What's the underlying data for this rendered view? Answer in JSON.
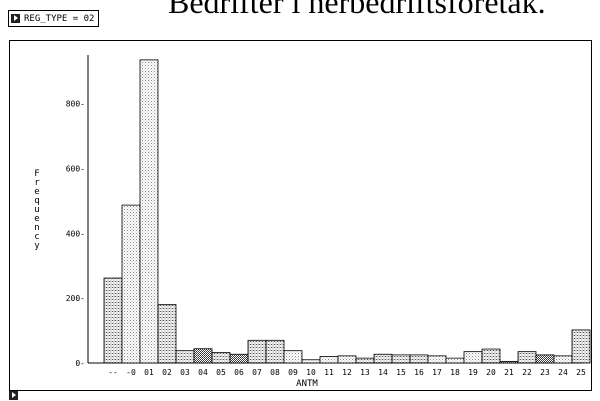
{
  "header": {
    "title": "Bedrifter i herbedriftsforetak.",
    "filter_label": "REG_TYPE = 02"
  },
  "chart_data": {
    "type": "bar",
    "categories": [
      "--",
      "-0",
      "01",
      "02",
      "03",
      "04",
      "05",
      "06",
      "07",
      "08",
      "09",
      "10",
      "11",
      "12",
      "13",
      "14",
      "15",
      "16",
      "17",
      "18",
      "19",
      "20",
      "21",
      "22",
      "23",
      "24",
      "25"
    ],
    "values": [
      262,
      487,
      935,
      180,
      38,
      44,
      32,
      27,
      70,
      70,
      38,
      10,
      20,
      22,
      15,
      27,
      25,
      25,
      22,
      15,
      35,
      43,
      5,
      35,
      25,
      22,
      102
    ],
    "xlabel": "ANTM",
    "ylabel": "Frequency",
    "ylim": [
      0,
      950
    ],
    "yticks": [
      0,
      200,
      400,
      600,
      800
    ],
    "ytick_labels": [
      "0-",
      "200-",
      "400-",
      "600-",
      "800-"
    ],
    "grid": false
  }
}
